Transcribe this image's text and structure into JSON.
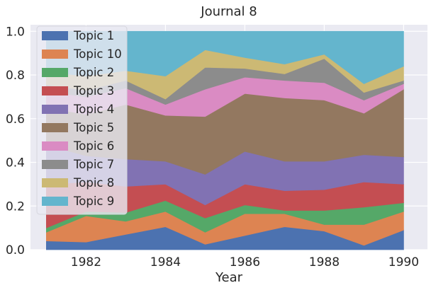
{
  "chart_data": {
    "type": "area",
    "stacked": true,
    "title": "Journal 8",
    "xlabel": "Year",
    "ylabel": "",
    "x": [
      1981,
      1982,
      1983,
      1984,
      1985,
      1986,
      1987,
      1988,
      1989,
      1990
    ],
    "xticks": [
      1982,
      1984,
      1986,
      1988,
      1990
    ],
    "xlim": [
      1980.6,
      1990.6
    ],
    "yticks": [
      "0.0",
      "0.2",
      "0.4",
      "0.6",
      "0.8",
      "1.0"
    ],
    "ytick_values": [
      0,
      0.2,
      0.4,
      0.6,
      0.8,
      1.0
    ],
    "ylim": [
      0,
      1.03
    ],
    "grid": true,
    "legend_position": "top-left",
    "series": [
      {
        "name": "Topic 1",
        "color": "#4c72b0",
        "values": [
          0.04,
          0.035,
          0.07,
          0.105,
          0.025,
          0.065,
          0.105,
          0.085,
          0.02,
          0.09
        ]
      },
      {
        "name": "Topic 10",
        "color": "#dd8452",
        "values": [
          0.04,
          0.12,
          0.06,
          0.07,
          0.055,
          0.1,
          0.06,
          0.03,
          0.095,
          0.085
        ]
      },
      {
        "name": "Topic 2",
        "color": "#55a868",
        "values": [
          0.02,
          0.02,
          0.04,
          0.05,
          0.065,
          0.04,
          0.015,
          0.065,
          0.08,
          0.04
        ]
      },
      {
        "name": "Topic 3",
        "color": "#c44e52",
        "values": [
          0.2,
          0.135,
          0.12,
          0.075,
          0.06,
          0.095,
          0.09,
          0.095,
          0.115,
          0.085
        ]
      },
      {
        "name": "Topic 4",
        "color": "#8172b3",
        "values": [
          0.18,
          0.12,
          0.125,
          0.105,
          0.14,
          0.15,
          0.135,
          0.13,
          0.125,
          0.125
        ]
      },
      {
        "name": "Topic 5",
        "color": "#937860",
        "values": [
          0.17,
          0.19,
          0.25,
          0.21,
          0.265,
          0.265,
          0.29,
          0.28,
          0.19,
          0.31
        ]
      },
      {
        "name": "Topic 6",
        "color": "#da8bc3",
        "values": [
          0.075,
          0.08,
          0.075,
          0.05,
          0.125,
          0.075,
          0.08,
          0.08,
          0.06,
          0.025
        ]
      },
      {
        "name": "Topic 7",
        "color": "#8c8c8c",
        "values": [
          0.03,
          0.03,
          0.035,
          0.025,
          0.1,
          0.04,
          0.03,
          0.11,
          0.035,
          0.015
        ]
      },
      {
        "name": "Topic 8",
        "color": "#ccb974",
        "values": [
          0.06,
          0.065,
          0.045,
          0.105,
          0.08,
          0.05,
          0.045,
          0.02,
          0.04,
          0.065
        ]
      },
      {
        "name": "Topic 9",
        "color": "#64b5cd",
        "values": [
          0.185,
          0.205,
          0.18,
          0.205,
          0.085,
          0.12,
          0.15,
          0.105,
          0.24,
          0.16
        ]
      }
    ]
  }
}
